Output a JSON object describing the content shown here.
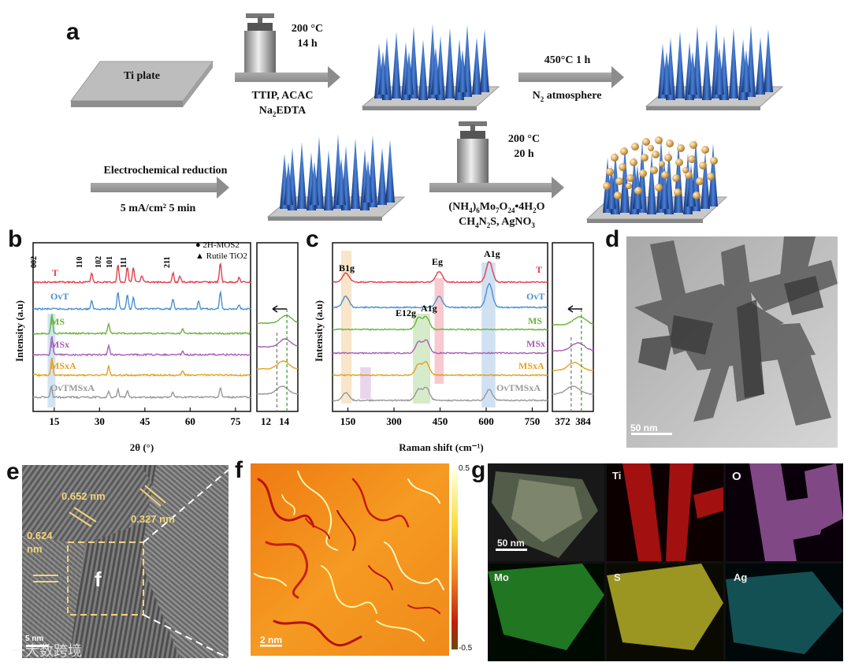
{
  "panel_a": {
    "label": "a",
    "ti_plate": "Ti plate",
    "step1_cond": [
      "200 °C",
      "14 h"
    ],
    "step1_reag": [
      "TTIP, ACAC",
      "Na2EDTA"
    ],
    "step2_cond": "450°C 1 h",
    "step2_reag": "N2 atmosphere",
    "step3_cond": "Electrochemical reduction",
    "step3_reag": "5 mA/cm² 5 min",
    "step4_cond": [
      "200 °C",
      "20 h"
    ],
    "step4_reag": [
      "(NH4)6Mo7O24•4H2O",
      "CH4N2S, AgNO3"
    ]
  },
  "panel_b": {
    "label": "b"
  },
  "panel_c": {
    "label": "c"
  },
  "panel_d": {
    "label": "d",
    "scale": "50 nm"
  },
  "panel_e": {
    "label": "e",
    "d1": "0.652 nm",
    "d2": "0.327 nm",
    "d3": "0.624 nm",
    "inset": "f",
    "scale": "5 nm"
  },
  "panel_f": {
    "label": "f",
    "scale": "2 nm",
    "cbar_max": "0.5",
    "cbar_min": "-0.5"
  },
  "panel_g": {
    "label": "g",
    "scale": "50 nm",
    "maps": [
      "Ti",
      "O",
      "Mo",
      "S",
      "Ag"
    ]
  },
  "watermark": "一大数跨境",
  "colors": {
    "T": "#e0404e",
    "OvT": "#4a90d0",
    "MS": "#6cb33c",
    "MSx": "#a860b8",
    "MSxA": "#e8a020",
    "OvTMSxA": "#999999"
  },
  "chart_data": [
    {
      "type": "line",
      "title": "",
      "xlabel": "2θ (°)",
      "ylabel": "Intensity (a.u)",
      "xlim": [
        8,
        80
      ],
      "xticks": [
        15,
        30,
        45,
        60,
        75
      ],
      "legend": [
        "● 2H-MOS2",
        "▲ Rutile TiO2"
      ],
      "peak_labels": [
        "002",
        "110",
        "102",
        "101",
        "111",
        "211"
      ],
      "series": [
        {
          "name": "T",
          "peaks": [
            27.4,
            36.1,
            39.2,
            41.2,
            44.0,
            54.3,
            56.6,
            70.0,
            76.2
          ]
        },
        {
          "name": "OvT",
          "peaks": [
            27.4,
            36.1,
            39.2,
            41.2,
            54.3,
            62.8,
            70.0,
            76.2
          ]
        },
        {
          "name": "MS",
          "peaks": [
            14.2,
            33.0,
            57.5
          ]
        },
        {
          "name": "MSx",
          "peaks": [
            14.2,
            33.0,
            57.5
          ]
        },
        {
          "name": "MSxA",
          "peaks": [
            14.2,
            33.0,
            57.5
          ]
        },
        {
          "name": "OvTMSxA",
          "peaks": [
            14.0,
            33.0,
            36.1,
            39.2,
            54.3,
            70.0
          ]
        }
      ],
      "inset": {
        "xlim": [
          11,
          15.5
        ],
        "xticks": [
          12,
          14
        ]
      }
    },
    {
      "type": "line",
      "title": "",
      "xlabel": "Raman shift (cm⁻¹)",
      "ylabel": "Intensity (a.u)",
      "xlim": [
        100,
        800
      ],
      "xticks": [
        150,
        300,
        450,
        600,
        750
      ],
      "band_labels": [
        "B1g",
        "Eg",
        "A1g",
        "E12g",
        "A1g"
      ],
      "series": [
        {
          "name": "T",
          "peaks": [
            143,
            447,
            610
          ]
        },
        {
          "name": "OvT",
          "peaks": [
            143,
            447,
            610
          ]
        },
        {
          "name": "MS",
          "peaks": [
            380,
            405
          ]
        },
        {
          "name": "MSx",
          "peaks": [
            380,
            405
          ]
        },
        {
          "name": "MSxA",
          "peaks": [
            380,
            405
          ]
        },
        {
          "name": "OvTMSxA",
          "peaks": [
            143,
            380,
            405,
            610
          ]
        }
      ],
      "inset": {
        "xlim": [
          366,
          390
        ],
        "xticks": [
          372,
          384
        ]
      }
    }
  ]
}
